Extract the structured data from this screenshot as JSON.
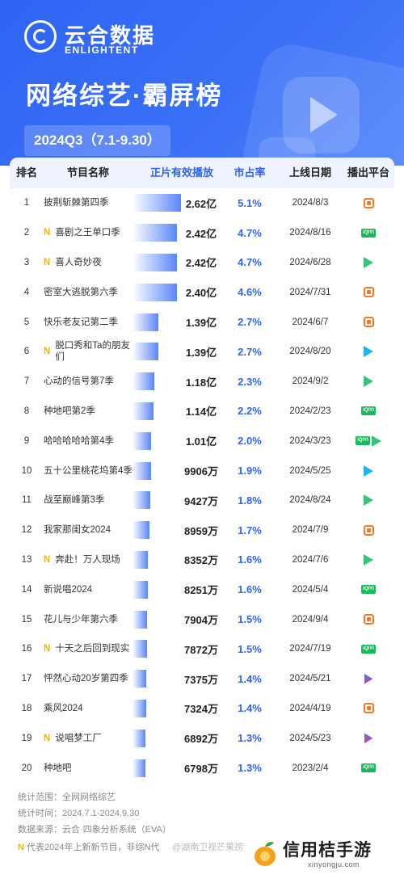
{
  "brand": {
    "cn": "云合数据",
    "en": "ENLIGHTENT"
  },
  "title": "网络综艺·霸屏榜",
  "period": "2024Q3（7.1-9.30）",
  "columns": {
    "rank": "排名",
    "name": "节目名称",
    "views": "正片有效播放",
    "share": "市占率",
    "date": "上线日期",
    "platform": "播出平台"
  },
  "rows": [
    {
      "rank": "1",
      "new": false,
      "name": "披荆斩棘第四季",
      "views": "2.62亿",
      "views_value_yi": 2.62,
      "share": "5.1%",
      "date": "2024/8/3",
      "platforms": [
        "mango-icon"
      ]
    },
    {
      "rank": "2",
      "new": true,
      "name": "喜剧之王单口季",
      "views": "2.42亿",
      "views_value_yi": 2.42,
      "share": "4.7%",
      "date": "2024/8/16",
      "platforms": [
        "iqiyi-icon"
      ]
    },
    {
      "rank": "3",
      "new": true,
      "name": "喜人奇妙夜",
      "views": "2.42亿",
      "views_value_yi": 2.42,
      "share": "4.7%",
      "date": "2024/6/28",
      "platforms": [
        "tencent-video-icon"
      ]
    },
    {
      "rank": "4",
      "new": false,
      "name": "密室大逃脱第六季",
      "views": "2.40亿",
      "views_value_yi": 2.4,
      "share": "4.6%",
      "date": "2024/7/31",
      "platforms": [
        "mango-icon"
      ]
    },
    {
      "rank": "5",
      "new": false,
      "name": "快乐老友记第二季",
      "views": "1.39亿",
      "views_value_yi": 1.39,
      "share": "2.7%",
      "date": "2024/6/7",
      "platforms": [
        "mango-icon"
      ]
    },
    {
      "rank": "6",
      "new": true,
      "name": "脱口秀和Ta的朋友们",
      "views": "1.39亿",
      "views_value_yi": 1.39,
      "share": "2.7%",
      "date": "2024/8/20",
      "platforms": [
        "tencent-video-icon"
      ]
    },
    {
      "rank": "7",
      "new": false,
      "name": "心动的信号第7季",
      "views": "1.18亿",
      "views_value_yi": 1.18,
      "share": "2.3%",
      "date": "2024/9/2",
      "platforms": [
        "tencent-video-icon"
      ]
    },
    {
      "rank": "8",
      "new": false,
      "name": "种地吧第2季",
      "views": "1.14亿",
      "views_value_yi": 1.14,
      "share": "2.2%",
      "date": "2024/2/23",
      "platforms": [
        "iqiyi-icon"
      ]
    },
    {
      "rank": "9",
      "new": false,
      "name": "哈哈哈哈哈第4季",
      "views": "1.01亿",
      "views_value_yi": 1.01,
      "share": "2.0%",
      "date": "2024/3/23",
      "platforms": [
        "iqiyi-icon",
        "tencent-video-icon"
      ]
    },
    {
      "rank": "10",
      "new": false,
      "name": "五十公里桃花坞第4季",
      "views": "9906万",
      "views_value_yi": 0.9906,
      "share": "1.9%",
      "date": "2024/5/25",
      "platforms": [
        "tencent-video-icon"
      ]
    },
    {
      "rank": "11",
      "new": false,
      "name": "战至巅峰第3季",
      "views": "9427万",
      "views_value_yi": 0.9427,
      "share": "1.8%",
      "date": "2024/8/24",
      "platforms": [
        "tencent-video-icon"
      ]
    },
    {
      "rank": "12",
      "new": false,
      "name": "我家那闺女2024",
      "views": "8959万",
      "views_value_yi": 0.8959,
      "share": "1.7%",
      "date": "2024/7/9",
      "platforms": [
        "mango-icon"
      ]
    },
    {
      "rank": "13",
      "new": true,
      "name": "奔赴！万人现场",
      "views": "8352万",
      "views_value_yi": 0.8352,
      "share": "1.6%",
      "date": "2024/7/6",
      "platforms": [
        "tencent-video-icon"
      ]
    },
    {
      "rank": "14",
      "new": false,
      "name": "新说唱2024",
      "views": "8251万",
      "views_value_yi": 0.8251,
      "share": "1.6%",
      "date": "2024/5/4",
      "platforms": [
        "iqiyi-icon"
      ]
    },
    {
      "rank": "15",
      "new": false,
      "name": "花儿与少年第六季",
      "views": "7904万",
      "views_value_yi": 0.7904,
      "share": "1.5%",
      "date": "2024/9/4",
      "platforms": [
        "mango-icon"
      ]
    },
    {
      "rank": "16",
      "new": true,
      "name": "十天之后回到现实",
      "views": "7872万",
      "views_value_yi": 0.7872,
      "share": "1.5%",
      "date": "2024/7/19",
      "platforms": [
        "iqiyi-icon"
      ]
    },
    {
      "rank": "17",
      "new": false,
      "name": "怦然心动20岁第四季",
      "views": "7375万",
      "views_value_yi": 0.7375,
      "share": "1.4%",
      "date": "2024/5/21",
      "platforms": [
        "youku-icon"
      ]
    },
    {
      "rank": "18",
      "new": false,
      "name": "乘风2024",
      "views": "7324万",
      "views_value_yi": 0.7324,
      "share": "1.4%",
      "date": "2024/4/19",
      "platforms": [
        "mango-icon"
      ]
    },
    {
      "rank": "19",
      "new": true,
      "name": "说唱梦工厂",
      "views": "6892万",
      "views_value_yi": 0.6892,
      "share": "1.3%",
      "date": "2024/5/23",
      "platforms": [
        "youku-icon"
      ]
    },
    {
      "rank": "20",
      "new": false,
      "name": "种地吧",
      "views": "6798万",
      "views_value_yi": 0.6798,
      "share": "1.3%",
      "date": "2023/2/4",
      "platforms": [
        "iqiyi-icon"
      ]
    }
  ],
  "new_mark": "N",
  "footer": {
    "scope": "统计范围：全网网络综艺",
    "time": "统计时间：2024.7.1-2024.9.30",
    "source": "数据来源：云合·四象分析系统（EVA）",
    "note": "代表2024年上新新节目，非综N代"
  },
  "watermark": "@湖南卫视芒果捞",
  "corner_brand": {
    "name": "信用桔手游",
    "url": "xinyongju.com"
  },
  "colors": {
    "header_blue": "#2f64f4",
    "accent_blue": "#2f64f4",
    "new_yellow": "#f4b400",
    "mango_orange": "#f07a25",
    "iqiyi_green": "#18b95a",
    "tencent_blue": "#23b3ee"
  }
}
